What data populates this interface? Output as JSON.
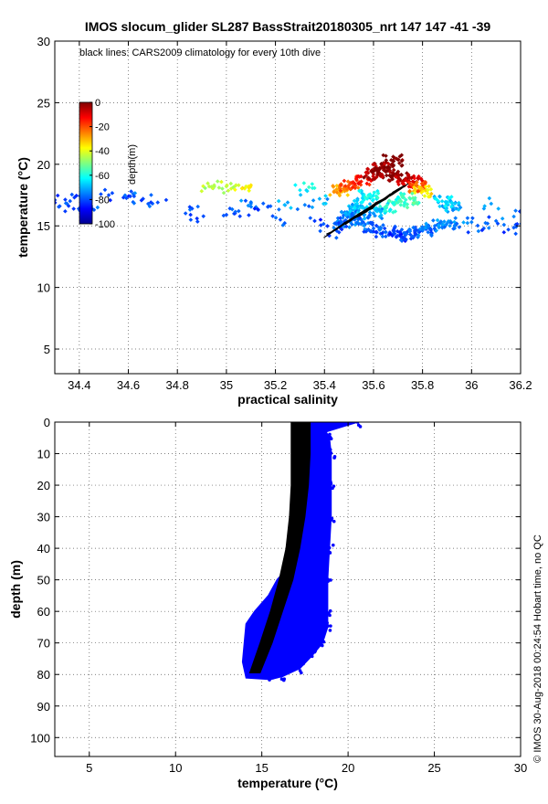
{
  "chart_data": [
    {
      "type": "scatter",
      "title": "IMOS slocum_glider SL287 BassStrait20180305_nrt 147  147  -41  -39",
      "annotation": "black lines: CARS2009 climatology for every 10th dive",
      "xlabel": "practical salinity",
      "ylabel": "temperature (°C)",
      "xlim": [
        34.3,
        36.2
      ],
      "ylim": [
        3,
        30
      ],
      "xticks": [
        34.4,
        34.6,
        34.8,
        35,
        35.2,
        35.4,
        35.6,
        35.8,
        36,
        36.2
      ],
      "xtick_labels": [
        "34.4",
        "34.6",
        "34.8",
        "35",
        "35.2",
        "35.4",
        "35.6",
        "35.8",
        "36",
        "36.2"
      ],
      "yticks": [
        5,
        10,
        15,
        20,
        25,
        30
      ],
      "ytick_labels": [
        "5",
        "10",
        "15",
        "20",
        "25",
        "30"
      ],
      "grid": true,
      "colorbar": {
        "label": "depth(m)",
        "range": [
          -100,
          0
        ],
        "ticks": [
          0,
          -20,
          -40,
          -60,
          -80,
          -100
        ],
        "tick_labels": [
          "0",
          "-20",
          "-40",
          "-60",
          "-80",
          "-100"
        ],
        "colormap": "jet"
      },
      "series": [
        {
          "kind": "points",
          "color_by": "depth",
          "points": [
            [
              34.3,
              17.1,
              -82
            ],
            [
              34.32,
              16.6,
              -80
            ],
            [
              34.35,
              16.8,
              -78
            ],
            [
              34.38,
              17.3,
              -82
            ],
            [
              34.42,
              16.5,
              -80
            ],
            [
              34.46,
              16.3,
              -79
            ],
            [
              34.52,
              17.5,
              -80
            ],
            [
              34.58,
              17.3,
              -82
            ],
            [
              34.62,
              17.6,
              -78
            ],
            [
              34.66,
              17.2,
              -81
            ],
            [
              34.72,
              16.9,
              -80
            ],
            [
              34.86,
              16.4,
              -80
            ],
            [
              34.88,
              15.6,
              -83
            ],
            [
              34.93,
              18.2,
              -44
            ],
            [
              34.95,
              18.3,
              -45
            ],
            [
              34.97,
              18.1,
              -46
            ],
            [
              35.0,
              18.2,
              -44
            ],
            [
              35.05,
              18.3,
              -42
            ],
            [
              35.08,
              18.2,
              -40
            ],
            [
              35.1,
              18.3,
              -35
            ],
            [
              35.0,
              15.9,
              -80
            ],
            [
              35.05,
              16.2,
              -78
            ],
            [
              35.1,
              16.8,
              -75
            ],
            [
              35.13,
              16.3,
              -80
            ],
            [
              35.18,
              16.6,
              -78
            ],
            [
              35.22,
              15.5,
              -80
            ],
            [
              35.25,
              16.9,
              -72
            ],
            [
              35.3,
              17.9,
              -64
            ],
            [
              35.32,
              16.7,
              -75
            ],
            [
              35.35,
              18.4,
              -60
            ],
            [
              35.36,
              15.4,
              -82
            ],
            [
              35.38,
              17.2,
              -70
            ],
            [
              35.42,
              14.2,
              -82
            ],
            [
              35.45,
              14.6,
              -80
            ],
            [
              35.48,
              15.2,
              -78
            ],
            [
              35.5,
              15.8,
              -75
            ],
            [
              35.52,
              16.3,
              -70
            ],
            [
              35.55,
              16.9,
              -66
            ],
            [
              35.58,
              17.5,
              -62
            ],
            [
              35.46,
              17.9,
              -30
            ],
            [
              35.5,
              18.3,
              -20
            ],
            [
              35.55,
              18.6,
              -15
            ],
            [
              35.6,
              19.2,
              -5
            ],
            [
              35.63,
              19.7,
              -3
            ],
            [
              35.65,
              19.4,
              -1
            ],
            [
              35.68,
              20.3,
              0
            ],
            [
              35.7,
              19.1,
              -2
            ],
            [
              35.73,
              18.8,
              -5
            ],
            [
              35.76,
              18.6,
              -10
            ],
            [
              35.78,
              18.2,
              -22
            ],
            [
              35.8,
              17.8,
              -35
            ],
            [
              35.75,
              17.2,
              -55
            ],
            [
              35.7,
              16.9,
              -58
            ],
            [
              35.65,
              16.5,
              -62
            ],
            [
              35.6,
              16.0,
              -70
            ],
            [
              35.55,
              15.5,
              -76
            ],
            [
              35.6,
              14.8,
              -78
            ],
            [
              35.65,
              14.5,
              -80
            ],
            [
              35.7,
              14.2,
              -82
            ],
            [
              35.75,
              14.3,
              -80
            ],
            [
              35.8,
              14.6,
              -78
            ],
            [
              35.85,
              15.0,
              -76
            ],
            [
              35.9,
              15.2,
              -74
            ],
            [
              35.95,
              14.9,
              -78
            ],
            [
              36.0,
              15.3,
              -75
            ],
            [
              36.05,
              14.8,
              -79
            ],
            [
              36.1,
              15.4,
              -77
            ],
            [
              36.15,
              14.7,
              -80
            ],
            [
              36.2,
              16.2,
              -78
            ],
            [
              36.18,
              15.1,
              -80
            ],
            [
              36.08,
              16.8,
              -72
            ],
            [
              35.92,
              16.5,
              -70
            ],
            [
              35.88,
              17.0,
              -66
            ]
          ]
        },
        {
          "kind": "climatology-lines",
          "color": "#000000",
          "note": "every 10th dive"
        }
      ]
    },
    {
      "type": "scatter",
      "xlabel": "temperature (°C)",
      "ylabel": "depth (m)",
      "xlim": [
        3,
        30
      ],
      "ylim": [
        106,
        0
      ],
      "xticks": [
        5,
        10,
        15,
        20,
        25,
        30
      ],
      "xtick_labels": [
        "5",
        "10",
        "15",
        "20",
        "25",
        "30"
      ],
      "yticks": [
        0,
        10,
        20,
        30,
        40,
        50,
        60,
        70,
        80,
        90,
        100
      ],
      "ytick_labels": [
        "0",
        "10",
        "20",
        "30",
        "40",
        "50",
        "60",
        "70",
        "80",
        "90",
        "100"
      ],
      "grid": true,
      "series": [
        {
          "kind": "glider-profiles",
          "color": "#0000ff",
          "envelope_left": [
            [
              17.0,
              0
            ],
            [
              17.1,
              10
            ],
            [
              17.1,
              20
            ],
            [
              17.0,
              30
            ],
            [
              17.0,
              40
            ],
            [
              16.7,
              45
            ],
            [
              15.9,
              50
            ],
            [
              15.4,
              55
            ],
            [
              14.6,
              60
            ],
            [
              14.1,
              64
            ],
            [
              14.0,
              70
            ],
            [
              13.9,
              76
            ],
            [
              14.1,
              81
            ]
          ],
          "envelope_right": [
            [
              20.5,
              0
            ],
            [
              18.7,
              3
            ],
            [
              18.9,
              5
            ],
            [
              19.0,
              10
            ],
            [
              19.0,
              20
            ],
            [
              19.0,
              30
            ],
            [
              18.9,
              40
            ],
            [
              18.8,
              50
            ],
            [
              18.8,
              60
            ],
            [
              18.8,
              65
            ],
            [
              18.5,
              70
            ],
            [
              17.9,
              74
            ],
            [
              17.2,
              78
            ],
            [
              16.2,
              80.5
            ],
            [
              15.5,
              81.5
            ]
          ]
        },
        {
          "kind": "climatology-band",
          "color": "#000000",
          "left": [
            [
              16.7,
              0
            ],
            [
              16.7,
              10
            ],
            [
              16.7,
              20
            ],
            [
              16.6,
              30
            ],
            [
              16.4,
              40
            ],
            [
              16.0,
              50
            ],
            [
              15.5,
              60
            ],
            [
              14.9,
              70
            ],
            [
              14.3,
              79.5
            ]
          ],
          "right": [
            [
              17.8,
              0
            ],
            [
              17.8,
              10
            ],
            [
              17.7,
              20
            ],
            [
              17.5,
              30
            ],
            [
              17.2,
              40
            ],
            [
              16.8,
              50
            ],
            [
              16.2,
              60
            ],
            [
              15.6,
              70
            ],
            [
              14.9,
              79.5
            ]
          ]
        }
      ]
    }
  ],
  "footer": {
    "credit": "© IMOS 30-Aug-2018 00:24:54 Hobart time, no QC"
  },
  "colors": {
    "axes": "#000000",
    "glider_profiles": "#0000ff",
    "climatology": "#000000",
    "grid": "#555555"
  }
}
